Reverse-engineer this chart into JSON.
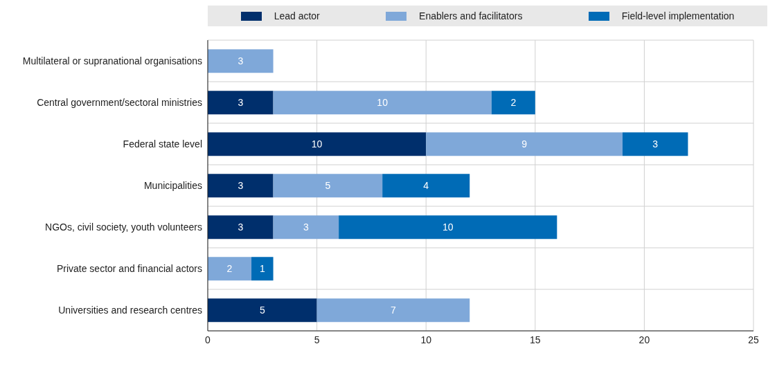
{
  "chart_data": {
    "type": "bar",
    "orientation": "horizontal",
    "stacked": true,
    "categories": [
      "Multilateral or supranational organisations",
      "Central government/sectoral ministries",
      "Federal state level",
      "Municipalities",
      "NGOs, civil society, youth volunteers",
      "Private sector and financial actors",
      "Universities and research centres"
    ],
    "series": [
      {
        "name": "Lead actor",
        "color": "#002f6c",
        "values": [
          null,
          3,
          10,
          3,
          3,
          null,
          5
        ]
      },
      {
        "name": "Enablers and facilitators",
        "color": "#7fa8d9",
        "values": [
          3,
          10,
          9,
          5,
          3,
          2,
          7
        ]
      },
      {
        "name": "Field-level implementation",
        "color": "#006bb6",
        "values": [
          null,
          2,
          3,
          4,
          10,
          1,
          null
        ]
      }
    ],
    "xlim": [
      0,
      25
    ],
    "xticks": [
      0,
      5,
      10,
      15,
      20,
      25
    ],
    "grid": true,
    "legend": "top",
    "data_labels": true
  }
}
